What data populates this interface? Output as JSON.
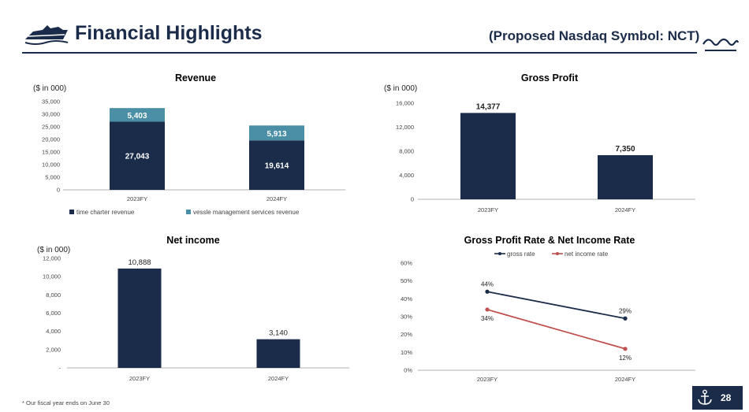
{
  "header": {
    "title": "Financial Highlights",
    "symbol": "(Proposed Nasdaq Symbol: NCT)"
  },
  "footer": {
    "note": "* Our fiscal year ends on June 30",
    "page": "28"
  },
  "icons": {
    "logo": "ship-logo-icon",
    "waves": "waves-icon",
    "anchor": "anchor-icon"
  },
  "colors": {
    "navy": "#1b2b4a",
    "teal": "#4a8fa6",
    "red": "#c0504d"
  },
  "chart_data": [
    {
      "id": "revenue",
      "type": "bar",
      "stacked": true,
      "title": "Revenue",
      "unit": "($ in 000)",
      "categories": [
        "2023FY",
        "2024FY"
      ],
      "series": [
        {
          "name": "time charter revenue",
          "values": [
            27043,
            19614
          ],
          "labels": [
            "27,043",
            "19,614"
          ],
          "color": "#1b2b4a"
        },
        {
          "name": "vessle management services revenue",
          "values": [
            5403,
            5913
          ],
          "labels": [
            "5,403",
            "5,913"
          ],
          "color": "#4a8fa6"
        }
      ],
      "ylim": [
        0,
        35000
      ],
      "yticks": [
        "0",
        "5,000",
        "10,000",
        "15,000",
        "20,000",
        "25,000",
        "30,000",
        "35,000"
      ],
      "legend": "bottom"
    },
    {
      "id": "gross",
      "type": "bar",
      "title": "Gross Profit",
      "unit": "($ in 000)",
      "categories": [
        "2023FY",
        "2024FY"
      ],
      "values": [
        14377,
        7350
      ],
      "labels": [
        "14,377",
        "7,350"
      ],
      "ylim": [
        0,
        16000
      ],
      "yticks": [
        "0",
        "4,000",
        "8,000",
        "12,000",
        "16,000"
      ]
    },
    {
      "id": "netincome",
      "type": "bar",
      "title": "Net income",
      "unit": "($ in 000)",
      "categories": [
        "2023FY",
        "2024FY"
      ],
      "values": [
        10888,
        3140
      ],
      "labels": [
        "10,888",
        "3,140"
      ],
      "ylim": [
        0,
        12000
      ],
      "yticks": [
        "-",
        "2,000",
        "4,000",
        "6,000",
        "8,000",
        "10,000",
        "12,000"
      ]
    },
    {
      "id": "rates",
      "type": "line",
      "title": "Gross Profit Rate & Net Income Rate",
      "categories": [
        "2023FY",
        "2024FY"
      ],
      "series": [
        {
          "name": "gross rate",
          "values": [
            44,
            29
          ],
          "labels": [
            "44%",
            "29%"
          ],
          "color": "#1b2b4a"
        },
        {
          "name": "net income rate",
          "values": [
            34,
            12
          ],
          "labels": [
            "34%",
            "12%"
          ],
          "color": "#c0504d"
        }
      ],
      "ylim": [
        0,
        60
      ],
      "yticks": [
        "0%",
        "10%",
        "20%",
        "30%",
        "40%",
        "50%",
        "60%"
      ],
      "legend": "top"
    }
  ]
}
